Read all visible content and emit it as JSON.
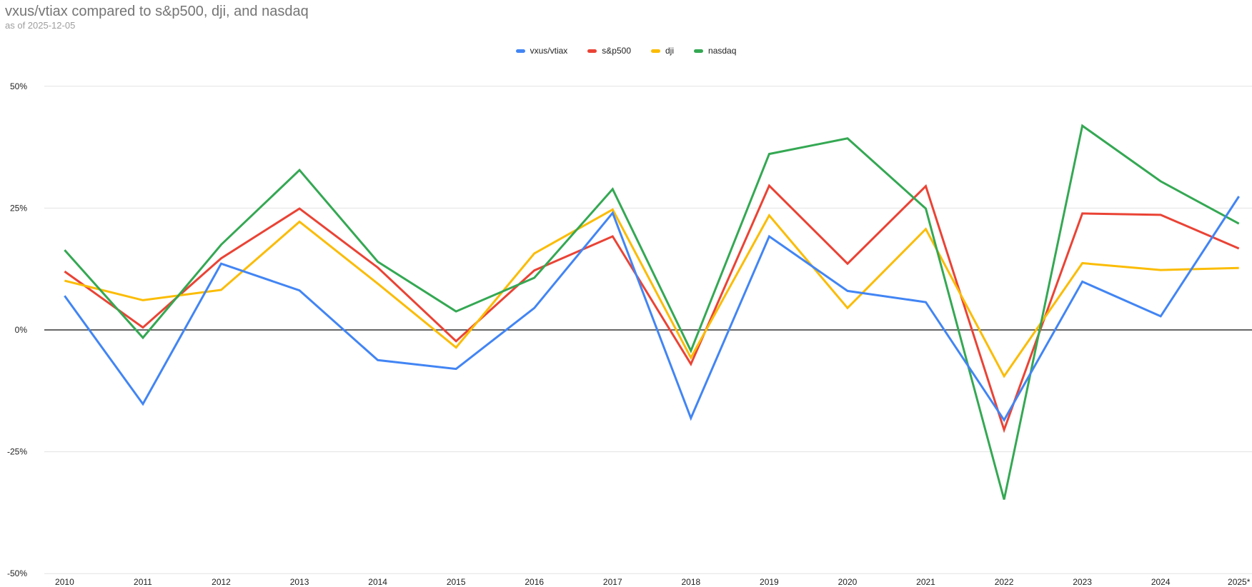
{
  "header": {
    "title": "vxus/vtiax compared to s&p500, dji, and nasdaq",
    "subtitle": "as of 2025-12-05"
  },
  "chart_data": {
    "type": "line",
    "title": "vxus/vtiax compared to s&p500, dji, and nasdaq",
    "subtitle": "as of 2025-12-05",
    "categories": [
      "2010",
      "2011",
      "2012",
      "2013",
      "2014",
      "2015",
      "2016",
      "2017",
      "2018",
      "2019",
      "2020",
      "2021",
      "2022",
      "2023",
      "2024",
      "2025*"
    ],
    "series": [
      {
        "name": "vxus/vtiax",
        "color": "#4285F4",
        "values": [
          7.0,
          -15.2,
          13.6,
          8.1,
          -6.2,
          -8.0,
          4.5,
          24.0,
          -18.1,
          19.2,
          8.0,
          5.7,
          -18.5,
          9.9,
          2.8,
          27.4
        ]
      },
      {
        "name": "s&p500",
        "color": "#EA4335",
        "values": [
          12.0,
          0.5,
          14.7,
          24.9,
          12.8,
          -2.3,
          12.2,
          19.2,
          -7.0,
          29.6,
          13.6,
          29.5,
          -20.5,
          23.9,
          23.6,
          16.7
        ]
      },
      {
        "name": "dji",
        "color": "#FBBC04",
        "values": [
          10.1,
          6.1,
          8.2,
          22.2,
          9.5,
          -3.6,
          15.7,
          24.7,
          -5.7,
          23.5,
          4.5,
          20.7,
          -9.5,
          13.7,
          12.3,
          12.7
        ]
      },
      {
        "name": "nasdaq",
        "color": "#34A853",
        "values": [
          16.4,
          -1.6,
          17.5,
          32.8,
          14.0,
          3.8,
          10.7,
          28.9,
          -4.3,
          36.1,
          39.3,
          24.9,
          -34.8,
          41.9,
          30.5,
          21.8
        ]
      }
    ],
    "xlabel": "",
    "ylabel": "",
    "y_ticks": [
      50,
      25,
      0,
      -25,
      -50
    ],
    "y_tick_suffix": "%",
    "ylim": [
      -50,
      50
    ],
    "grid": true,
    "legend_position": "top-center",
    "colors": {
      "gridline": "#e3e3e3",
      "zero_line": "#333333",
      "axis_label": "#222222",
      "title": "#757575",
      "subtitle": "#9e9e9e",
      "background": "#ffffff"
    }
  }
}
